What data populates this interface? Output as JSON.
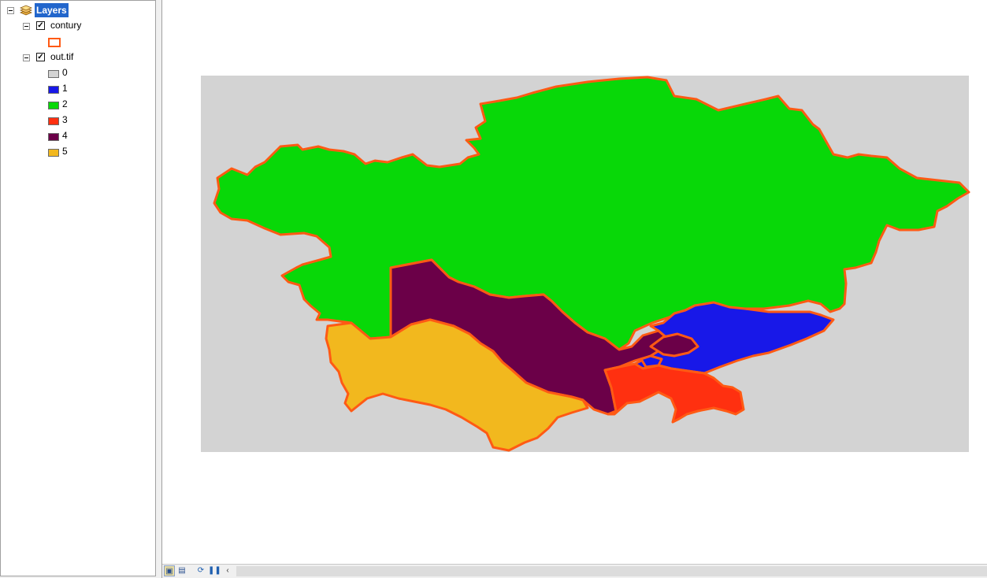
{
  "toc": {
    "root": {
      "label": "Layers",
      "icon": "layers-icon"
    },
    "layers": [
      {
        "name": "contury",
        "checked": true,
        "symbol": {
          "fill": "#ffffff",
          "outline": "#ff5a14"
        }
      },
      {
        "name": "out.tif",
        "checked": true,
        "classes": [
          {
            "label": "0",
            "color": "#d3d3d3"
          },
          {
            "label": "1",
            "color": "#1818e8"
          },
          {
            "label": "2",
            "color": "#08d808"
          },
          {
            "label": "3",
            "color": "#ff3010"
          },
          {
            "label": "4",
            "color": "#6b0048"
          },
          {
            "label": "5",
            "color": "#f2b81e"
          }
        ]
      }
    ]
  },
  "map": {
    "background": "#ffffff",
    "raster_background": "#d3d3d3",
    "boundary_color": "#ff5a14"
  },
  "statusbar": {
    "buttons": [
      "data-view-icon",
      "layout-view-icon",
      "refresh-icon",
      "pause-icon",
      "scroll-left-icon"
    ]
  }
}
